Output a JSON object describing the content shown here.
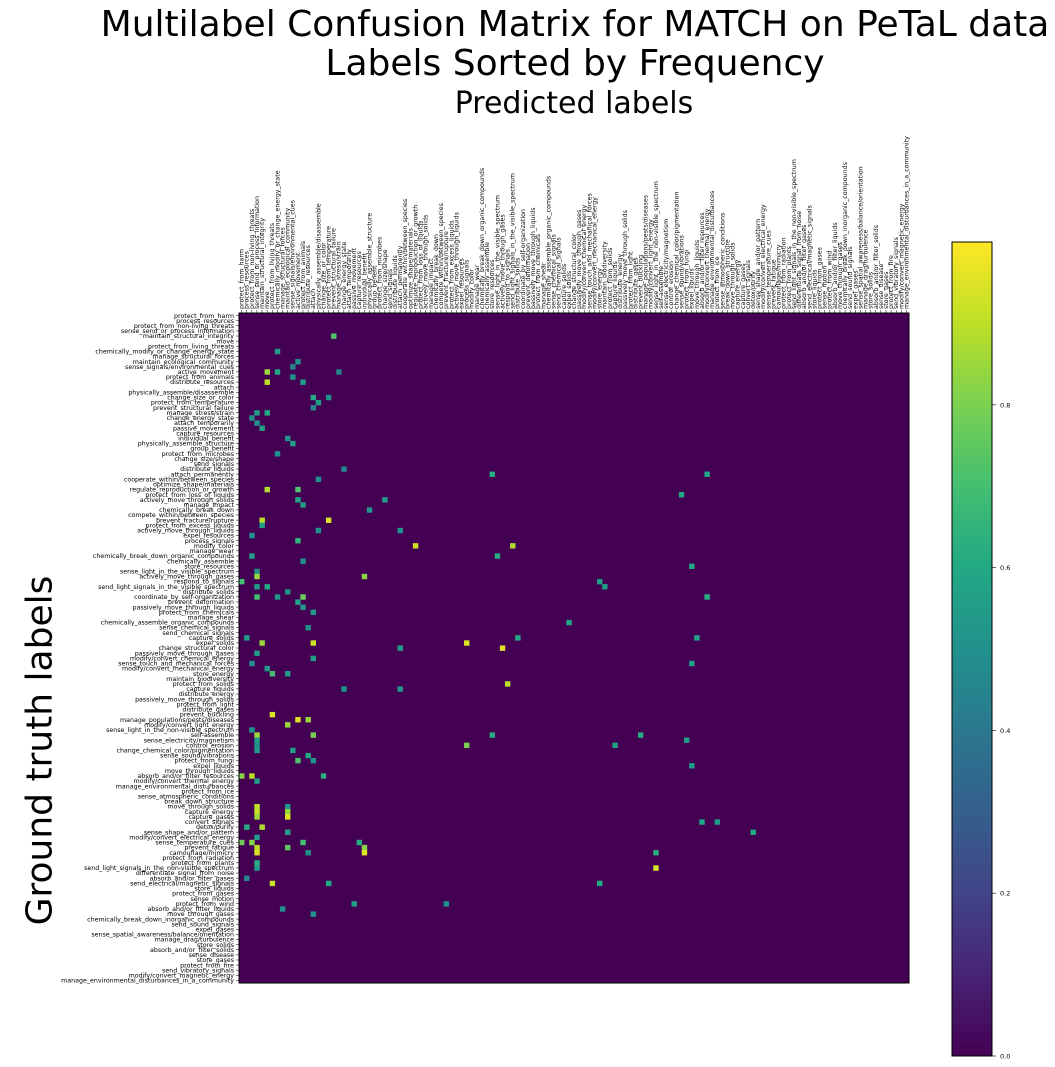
{
  "chart_data": {
    "type": "heatmap",
    "title": "Multilabel Confusion Matrix for MATCH on PeTaL data",
    "subtitle": "Labels Sorted by Frequency",
    "xlabel": "Predicted labels",
    "ylabel": "Ground truth labels",
    "colormap": "viridis",
    "colorbar": {
      "ticks": [
        0.0,
        0.2,
        0.4,
        0.6,
        0.8
      ],
      "vmin": 0.0,
      "vmax": 1.0
    },
    "labels": [
      "protect_from_harm",
      "process_resources",
      "protect_from_non-living_threats",
      "sense_send_or_process_information",
      "maintain_structural_integrity",
      "move",
      "protect_from_living_threats",
      "chemically_modify_or_change_energy_state",
      "manage_structural_forces",
      "maintain_ecological_community",
      "sense_signals/environmental_cues",
      "active_movement",
      "protect_from_animals",
      "distribute_resources",
      "attach",
      "physically_assemble/disassemble",
      "change_size_or_color",
      "protect_from_temperature",
      "prevent_structural_failure",
      "manage_stress/strain",
      "change_energy_state",
      "attach_temporarily",
      "passive_movement",
      "capture_resources",
      "individual_benefit",
      "physically_assemble_structure",
      "group_benefit",
      "protect_from_microbes",
      "change_size/shape",
      "send_signals",
      "distribute_liquids",
      "attach_permanently",
      "cooperate_within/between_species",
      "optimize_shape/materials",
      "regulate_reproduction_or_growth",
      "protect_from_loss_of_liquids",
      "actively_move_through_solids",
      "manage_impact",
      "chemically_break_down",
      "compete_within/between_species",
      "prevent_fracture/rupture",
      "protect_from_excess_liquids",
      "actively_move_through_liquids",
      "expel_resources",
      "process_signals",
      "modify_color",
      "manage_wear",
      "chemically_break_down_organic_compounds",
      "chemically_assemble",
      "store_resources",
      "sense_light_in_the_visible_spectrum",
      "actively_move_through_gases",
      "respond_to_signals",
      "send_light_signals_in_the_visible_spectrum",
      "distribute_solids",
      "coordinate_by_self-organization",
      "prevent_deformation",
      "passively_move_through_liquids",
      "protect_from_chemicals",
      "manage_shear",
      "chemically_assemble_organic_compounds",
      "sense_chemical_signals",
      "send_chemical_signals",
      "capture_solids",
      "expel_solids",
      "change_structural_color",
      "passively_move_through_gases",
      "modify/convert_chemical_energy",
      "sense_touch_and_mechanical_forces",
      "modify/convert_mechanical_energy",
      "store_energy",
      "maintain_biodiversity",
      "protect_from_solids",
      "capture_liquids",
      "distribute_energy",
      "passively_move_through_solids",
      "protect_from_light",
      "distribute_gases",
      "prevent_buckling",
      "manage_populations/pests/diseases",
      "modify/convert_light_energy",
      "sense_light_in_the_non-visible_spectrum",
      "self-assemble",
      "sense_electricity/magnetism",
      "control_erosion",
      "change_chemical_color/pigmentation",
      "sense_sound/vibrations",
      "protect_from_fungi",
      "expel_liquids",
      "move_through_liquids",
      "absorb_and/or_filter_resources",
      "modify/convert_thermal_energy",
      "manage_environmental_disturbances",
      "protect_from_ice",
      "sense_atmospheric_conditions",
      "break_down_structure",
      "move_through_solids",
      "capture_energy",
      "capture_gases",
      "convert_signals",
      "detox/purify",
      "sense_shape_and/or_pattern",
      "modify/convert_electrical_energy",
      "sense_temperature_cues",
      "prevent_fatigue",
      "camouflage/mimicry",
      "protect_from_radiation",
      "protect_from_plants",
      "send_light_signals_in_the_non-visible_spectrum",
      "differentiate_signal_from_noise",
      "absorb_and/or_filter_gases",
      "send_electrical/magnetic_signals",
      "store_liquids",
      "protect_from_gases",
      "sense_motion",
      "protect_from_wind",
      "absorb_and/or_filter_liquids",
      "move_through_gases",
      "chemically_break_down_inorganic_compounds",
      "send_sound_signals",
      "expel_gases",
      "sense_spatial_awareness/balance/orientation",
      "manage_drag/turbulence",
      "store_solids",
      "absorb_and/or_filter_solids",
      "sense_disease",
      "store_gases",
      "protect_from_fire",
      "send_vibratory_signals",
      "modify/convert_magnetic_energy",
      "manage_environmental_disturbances_in_a_community"
    ],
    "cells": [
      [
        4,
        18,
        0.72
      ],
      [
        7,
        7,
        0.55
      ],
      [
        9,
        11,
        0.5
      ],
      [
        10,
        10,
        0.45
      ],
      [
        11,
        5,
        0.85
      ],
      [
        11,
        7,
        0.6
      ],
      [
        11,
        19,
        0.45
      ],
      [
        12,
        10,
        0.5
      ],
      [
        13,
        5,
        0.9
      ],
      [
        13,
        12,
        0.55
      ],
      [
        16,
        14,
        0.6
      ],
      [
        16,
        17,
        0.5
      ],
      [
        17,
        15,
        0.55
      ],
      [
        18,
        14,
        0.45
      ],
      [
        19,
        3,
        0.55
      ],
      [
        19,
        5,
        0.6
      ],
      [
        20,
        2,
        0.5
      ],
      [
        21,
        3,
        0.5
      ],
      [
        22,
        4,
        0.55
      ],
      [
        24,
        9,
        0.5
      ],
      [
        25,
        10,
        0.55
      ],
      [
        27,
        7,
        0.5
      ],
      [
        30,
        20,
        0.45
      ],
      [
        31,
        49,
        0.62
      ],
      [
        31,
        91,
        0.58
      ],
      [
        32,
        15,
        0.5
      ],
      [
        34,
        5,
        0.88
      ],
      [
        34,
        11,
        0.72
      ],
      [
        35,
        86,
        0.6
      ],
      [
        36,
        11,
        0.58
      ],
      [
        36,
        28,
        0.55
      ],
      [
        37,
        12,
        0.55
      ],
      [
        38,
        25,
        0.52
      ],
      [
        40,
        4,
        0.9
      ],
      [
        40,
        17,
        0.95
      ],
      [
        41,
        4,
        0.55
      ],
      [
        42,
        15,
        0.5
      ],
      [
        42,
        31,
        0.5
      ],
      [
        43,
        2,
        0.5
      ],
      [
        44,
        11,
        0.65
      ],
      [
        45,
        34,
        0.92
      ],
      [
        45,
        53,
        0.88
      ],
      [
        47,
        2,
        0.55
      ],
      [
        47,
        50,
        0.62
      ],
      [
        48,
        12,
        0.5
      ],
      [
        49,
        88,
        0.6
      ],
      [
        50,
        3,
        0.5
      ],
      [
        51,
        3,
        0.85
      ],
      [
        51,
        24,
        0.82
      ],
      [
        52,
        0,
        0.7
      ],
      [
        52,
        70,
        0.55
      ],
      [
        53,
        3,
        0.55
      ],
      [
        53,
        5,
        0.6
      ],
      [
        53,
        71,
        0.55
      ],
      [
        54,
        9,
        0.5
      ],
      [
        55,
        3,
        0.7
      ],
      [
        55,
        7,
        0.52
      ],
      [
        55,
        12,
        0.78
      ],
      [
        55,
        91,
        0.62
      ],
      [
        56,
        11,
        0.58
      ],
      [
        57,
        12,
        0.52
      ],
      [
        58,
        14,
        0.52
      ],
      [
        60,
        64,
        0.6
      ],
      [
        61,
        13,
        0.5
      ],
      [
        63,
        1,
        0.55
      ],
      [
        63,
        54,
        0.6
      ],
      [
        63,
        89,
        0.58
      ],
      [
        64,
        4,
        0.85
      ],
      [
        64,
        14,
        0.92
      ],
      [
        64,
        44,
        0.95
      ],
      [
        65,
        51,
        0.95
      ],
      [
        65,
        31,
        0.55
      ],
      [
        66,
        3,
        0.55
      ],
      [
        67,
        14,
        0.55
      ],
      [
        68,
        2,
        0.5
      ],
      [
        68,
        88,
        0.55
      ],
      [
        69,
        5,
        0.52
      ],
      [
        70,
        6,
        0.7
      ],
      [
        70,
        9,
        0.55
      ],
      [
        72,
        52,
        0.9
      ],
      [
        73,
        20,
        0.52
      ],
      [
        73,
        31,
        0.52
      ],
      [
        78,
        6,
        0.95
      ],
      [
        79,
        13,
        0.85
      ],
      [
        79,
        11,
        0.95
      ],
      [
        80,
        9,
        0.85
      ],
      [
        81,
        2,
        0.5
      ],
      [
        82,
        3,
        0.85
      ],
      [
        82,
        14,
        0.8
      ],
      [
        82,
        49,
        0.62
      ],
      [
        82,
        78,
        0.62
      ],
      [
        83,
        3,
        0.55
      ],
      [
        83,
        87,
        0.55
      ],
      [
        84,
        3,
        0.5
      ],
      [
        84,
        44,
        0.8
      ],
      [
        84,
        73,
        0.58
      ],
      [
        85,
        3,
        0.55
      ],
      [
        85,
        10,
        0.55
      ],
      [
        86,
        13,
        0.6
      ],
      [
        87,
        11,
        0.72
      ],
      [
        87,
        14,
        0.52
      ],
      [
        88,
        88,
        0.55
      ],
      [
        90,
        0,
        0.82
      ],
      [
        90,
        2,
        0.9
      ],
      [
        90,
        16,
        0.62
      ],
      [
        91,
        3,
        0.55
      ],
      [
        96,
        3,
        0.9
      ],
      [
        96,
        9,
        0.52
      ],
      [
        97,
        3,
        0.92
      ],
      [
        97,
        9,
        0.85
      ],
      [
        98,
        3,
        0.85
      ],
      [
        98,
        9,
        0.95
      ],
      [
        99,
        90,
        0.6
      ],
      [
        99,
        93,
        0.55
      ],
      [
        100,
        1,
        0.62
      ],
      [
        100,
        4,
        0.88
      ],
      [
        101,
        100,
        0.6
      ],
      [
        101,
        9,
        0.55
      ],
      [
        102,
        3,
        0.55
      ],
      [
        103,
        0,
        0.78
      ],
      [
        103,
        2,
        0.82
      ],
      [
        103,
        12,
        0.7
      ],
      [
        103,
        23,
        0.62
      ],
      [
        104,
        3,
        0.9
      ],
      [
        104,
        9,
        0.75
      ],
      [
        104,
        24,
        0.82
      ],
      [
        105,
        3,
        0.95
      ],
      [
        105,
        13,
        0.5
      ],
      [
        105,
        24,
        0.95
      ],
      [
        105,
        81,
        0.62
      ],
      [
        107,
        3,
        0.62
      ],
      [
        108,
        3,
        0.55
      ],
      [
        108,
        81,
        0.95
      ],
      [
        110,
        1,
        0.45
      ],
      [
        111,
        6,
        0.92
      ],
      [
        111,
        17,
        0.6
      ],
      [
        111,
        70,
        0.6
      ],
      [
        115,
        22,
        0.55
      ],
      [
        115,
        40,
        0.5
      ],
      [
        116,
        8,
        0.48
      ],
      [
        117,
        14,
        0.5
      ]
    ]
  }
}
